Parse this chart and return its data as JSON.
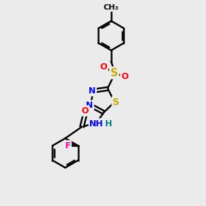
{
  "background_color": "#ebebeb",
  "bond_color": "#000000",
  "bond_width": 1.8,
  "atom_colors": {
    "N": "#0000ff",
    "S": "#ccaa00",
    "O": "#ff0000",
    "F": "#ff00aa",
    "H": "#008080",
    "C": "#000000"
  },
  "font_size_atom": 9
}
